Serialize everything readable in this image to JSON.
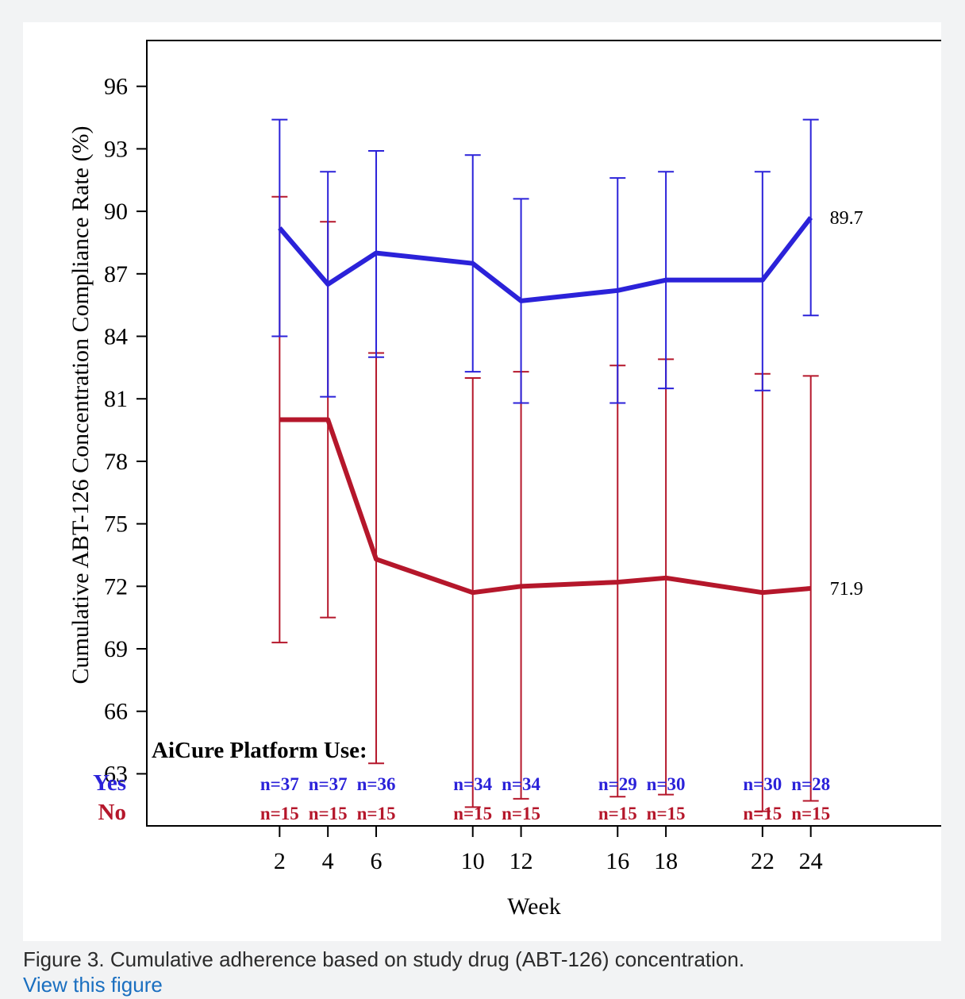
{
  "figure": {
    "caption": "Figure 3. Cumulative adherence based on study drug (ABT-126) concentration.",
    "link_label": "View this figure"
  },
  "chart_data": {
    "type": "line",
    "title": "",
    "xlabel": "Week",
    "ylabel": "Cumulative ABT-126 Concentration Compliance Rate (%)",
    "x": [
      2,
      4,
      6,
      10,
      12,
      16,
      18,
      22,
      24
    ],
    "xlim": [
      -3.5,
      29.5
    ],
    "ylim": [
      60.5,
      98.2
    ],
    "yticks": [
      63,
      66,
      69,
      72,
      75,
      78,
      81,
      84,
      87,
      90,
      93,
      96
    ],
    "grid": false,
    "legend_title": "AiCure Platform Use:",
    "series": [
      {
        "name": "Yes",
        "color": "#2b22d9",
        "values": [
          89.2,
          86.5,
          88.0,
          87.5,
          85.7,
          86.2,
          86.7,
          86.7,
          89.7
        ],
        "error_low": [
          84.0,
          81.1,
          83.0,
          82.3,
          80.8,
          80.8,
          81.5,
          81.4,
          85.0
        ],
        "error_high": [
          94.4,
          91.9,
          92.9,
          92.7,
          90.6,
          91.6,
          91.9,
          91.9,
          94.4
        ],
        "n": [
          "n=37",
          "n=37",
          "n=36",
          "n=34",
          "n=34",
          "n=29",
          "n=30",
          "n=30",
          "n=28"
        ],
        "end_label": "89.7"
      },
      {
        "name": "No",
        "color": "#b5172b",
        "values": [
          80.0,
          80.0,
          73.3,
          71.7,
          72.0,
          72.2,
          72.4,
          71.7,
          71.9
        ],
        "error_low": [
          69.3,
          70.5,
          63.5,
          61.4,
          61.8,
          61.9,
          62.0,
          61.2,
          61.7
        ],
        "error_high": [
          90.7,
          89.5,
          83.2,
          82.0,
          82.3,
          82.6,
          82.9,
          82.2,
          82.1
        ],
        "n": [
          "n=15",
          "n=15",
          "n=15",
          "n=15",
          "n=15",
          "n=15",
          "n=15",
          "n=15",
          "n=15"
        ],
        "end_label": "71.9"
      }
    ]
  }
}
